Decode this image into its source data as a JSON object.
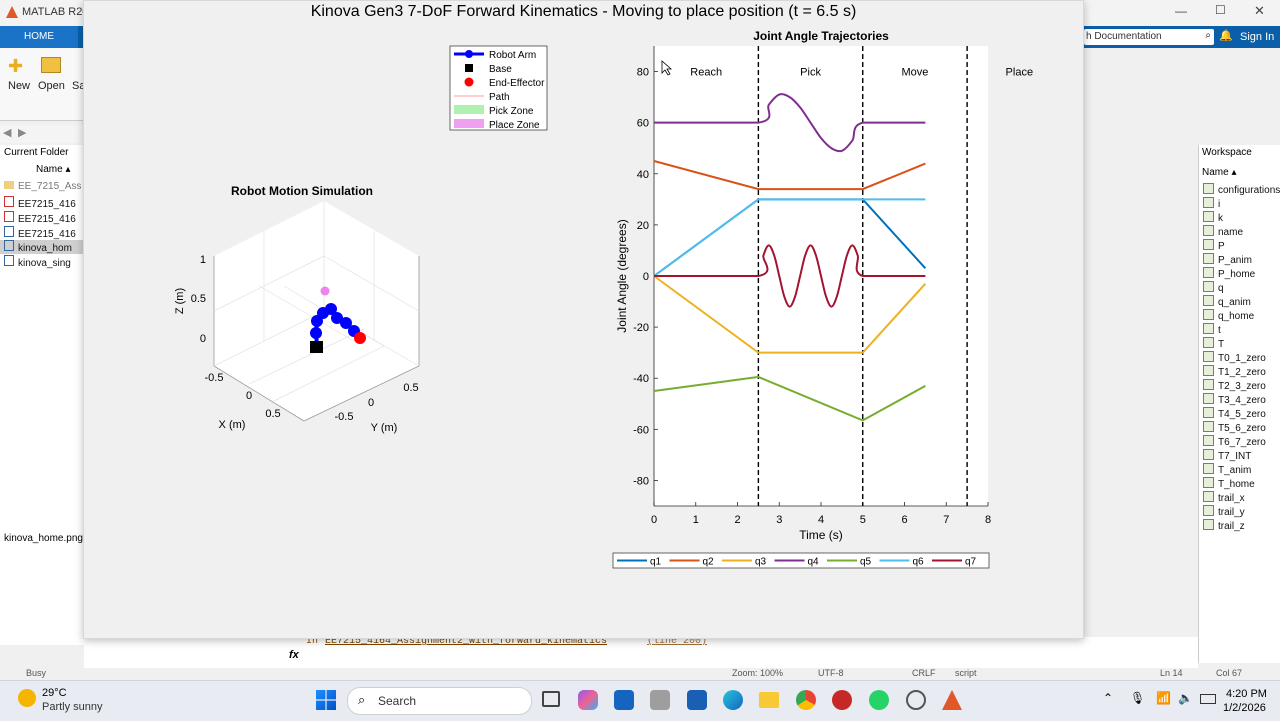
{
  "matlab": {
    "title": "MATLAB R202",
    "home_tab": "HOME",
    "toolstrip": {
      "new": "New",
      "open": "Open",
      "save": "Sa"
    },
    "search_docs": "h Documentation",
    "sign_in": "Sign In",
    "current_folder_label": "Current Folder",
    "name_col": "Name ▴",
    "files": [
      "EE_7215_Ass",
      "EE7215_416",
      "EE7215_416",
      "EE7215_416",
      "kinova_hom",
      "kinova_sing"
    ],
    "file_tab": "kinova_home.png",
    "workspace_label": "Workspace",
    "workspace_name_col": "Name ▴",
    "workspace_vars": [
      "configurations",
      "i",
      "k",
      "name",
      "P",
      "P_anim",
      "P_home",
      "q",
      "q_anim",
      "q_home",
      "t",
      "T",
      "T0_1_zero",
      "T1_2_zero",
      "T2_3_zero",
      "T3_4_zero",
      "T4_5_zero",
      "T5_6_zero",
      "T6_7_zero",
      "T7_INT",
      "T_anim",
      "T_home",
      "trail_x",
      "trail_y",
      "trail_z"
    ],
    "cmd_in": "In",
    "cmd_file": "EE7215_4164_Assignment2_with_forward_kinematics",
    "cmd_line": "(line 200)",
    "fx": "fx",
    "status_busy": "Busy",
    "status_zoom": "Zoom: 100%",
    "status_enc": "UTF-8",
    "status_eol": "CRLF",
    "status_type": "script",
    "status_ln": "Ln 14",
    "status_col": "Col 67"
  },
  "figure": {
    "title": "Kinova Gen3 7-DoF Forward Kinematics - Moving to place position (t = 6.5 s)",
    "sim_title": "Robot Motion Simulation",
    "sim_xlabel": "X (m)",
    "sim_ylabel": "Y (m)",
    "sim_zlabel": "Z (m)",
    "z_ticks": [
      "1",
      "0.5",
      "0"
    ],
    "x_ticks": [
      "-0.5",
      "0",
      "0.5"
    ],
    "y_ticks": [
      "-0.5",
      "0",
      "0.5"
    ],
    "legend": [
      {
        "label": "Robot Arm",
        "color": "#0000ff"
      },
      {
        "label": "Base",
        "color": "#000000"
      },
      {
        "label": "End-Effector",
        "color": "#ff0000"
      },
      {
        "label": "Path",
        "color": "#ffb0b0"
      },
      {
        "label": "Pick Zone",
        "color": "#b0f0b0"
      },
      {
        "label": "Place Zone",
        "color": "#f0a0f0"
      }
    ]
  },
  "chart_data": {
    "type": "line",
    "title": "Joint Angle Trajectories",
    "xlabel": "Time (s)",
    "ylabel": "Joint Angle (degrees)",
    "xlim": [
      0,
      8
    ],
    "ylim": [
      -90,
      90
    ],
    "xticks": [
      0,
      1,
      2,
      3,
      4,
      5,
      6,
      7,
      8
    ],
    "yticks": [
      -80,
      -60,
      -40,
      -20,
      0,
      20,
      40,
      60,
      80
    ],
    "phase_lines": [
      2.5,
      5,
      7.5
    ],
    "phases": [
      {
        "label": "Reach",
        "x": 1.25
      },
      {
        "label": "Pick",
        "x": 3.75
      },
      {
        "label": "Move",
        "x": 6.25
      },
      {
        "label": "Place",
        "x": 8.75
      }
    ],
    "legend_placement": "bottom",
    "series": [
      {
        "name": "q1",
        "color": "#0072bd",
        "points": [
          [
            0,
            0
          ],
          [
            2.5,
            30
          ],
          [
            5,
            30
          ],
          [
            6.5,
            3
          ]
        ]
      },
      {
        "name": "q2",
        "color": "#d95319",
        "points": [
          [
            0,
            45
          ],
          [
            2.5,
            34
          ],
          [
            5,
            34
          ],
          [
            6.5,
            44
          ]
        ]
      },
      {
        "name": "q3",
        "color": "#edb120",
        "points": [
          [
            0,
            0
          ],
          [
            2.5,
            -30
          ],
          [
            5,
            -30
          ],
          [
            6.5,
            -3
          ]
        ]
      },
      {
        "name": "q4",
        "color": "#7e2f8e",
        "points": [
          [
            0,
            60
          ],
          [
            2.5,
            60
          ],
          [
            2.75,
            67
          ],
          [
            3,
            71
          ],
          [
            3.25,
            70
          ],
          [
            3.5,
            66
          ],
          [
            3.75,
            60
          ],
          [
            4,
            54
          ],
          [
            4.25,
            50
          ],
          [
            4.5,
            49
          ],
          [
            4.75,
            53
          ],
          [
            5,
            60
          ],
          [
            6.5,
            60
          ]
        ]
      },
      {
        "name": "q5",
        "color": "#77ac30",
        "points": [
          [
            0,
            -45
          ],
          [
            2.5,
            -39.5
          ],
          [
            5,
            -56.5
          ],
          [
            6.5,
            -43
          ]
        ]
      },
      {
        "name": "q6",
        "color": "#4dbeee",
        "points": [
          [
            0,
            0
          ],
          [
            2.5,
            30
          ],
          [
            5,
            30
          ],
          [
            6.5,
            30
          ]
        ]
      },
      {
        "name": "q7",
        "color": "#a2142f",
        "points": [
          [
            0,
            0
          ],
          [
            2.5,
            0
          ],
          [
            2.62,
            8
          ],
          [
            2.75,
            12
          ],
          [
            2.88,
            8
          ],
          [
            3,
            0
          ],
          [
            3.12,
            -8
          ],
          [
            3.25,
            -12
          ],
          [
            3.38,
            -8
          ],
          [
            3.5,
            0
          ],
          [
            3.62,
            8
          ],
          [
            3.75,
            12
          ],
          [
            3.88,
            8
          ],
          [
            4,
            0
          ],
          [
            4.12,
            -8
          ],
          [
            4.25,
            -12
          ],
          [
            4.38,
            -8
          ],
          [
            4.5,
            0
          ],
          [
            4.62,
            8
          ],
          [
            4.75,
            12
          ],
          [
            4.88,
            8
          ],
          [
            5,
            0
          ],
          [
            6.5,
            0
          ]
        ]
      }
    ]
  },
  "taskbar": {
    "weather_temp": "29°C",
    "weather_desc": "Partly sunny",
    "search": "Search",
    "time": "4:20 PM",
    "date": "1/2/2026"
  }
}
